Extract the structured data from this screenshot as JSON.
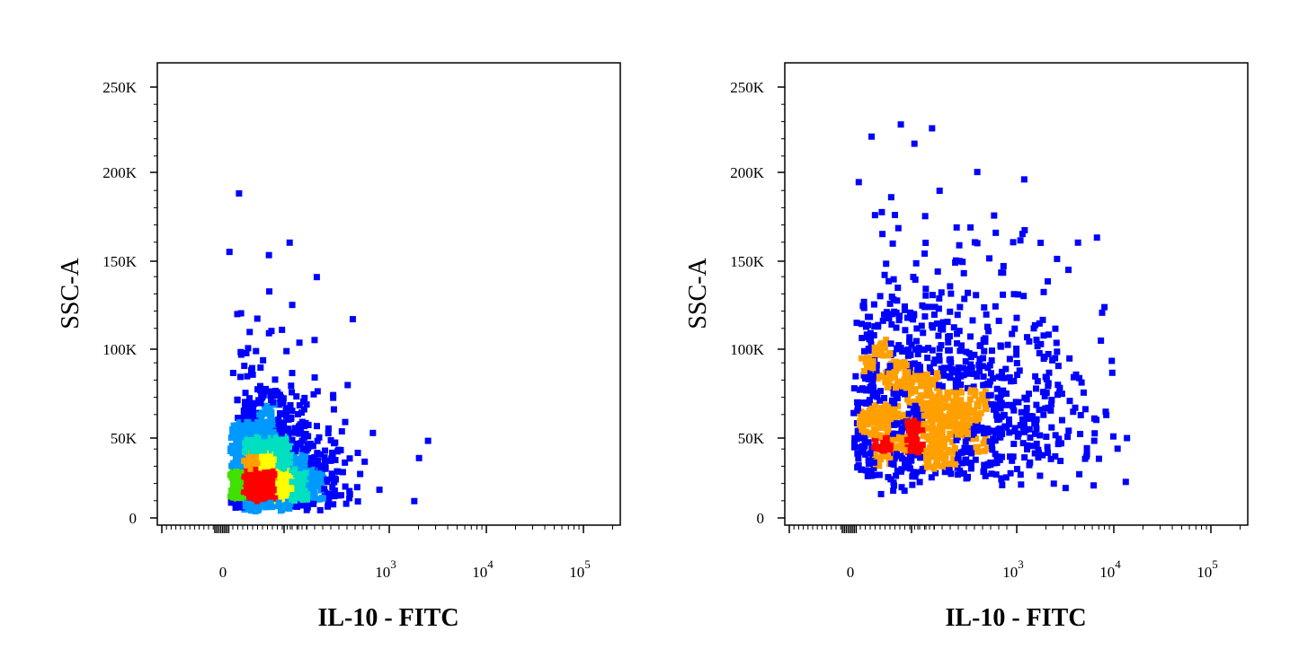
{
  "chart_data": [
    {
      "type": "scatter",
      "plot_style": "flow-cytometry pseudocolor density dot plot",
      "xlabel": "IL-10 - FITC",
      "ylabel": "SSC-A",
      "x_scale": "biexponential",
      "x_ticks": [
        "0",
        "10^3",
        "10^4",
        "10^5"
      ],
      "y_ticks": [
        "0",
        "50K",
        "100K",
        "150K",
        "200K",
        "250K"
      ],
      "ylim": [
        0,
        262144
      ],
      "grid": false,
      "density_colors": [
        "#0000ff",
        "#0099ff",
        "#00e0c0",
        "#40e000",
        "#ffff00",
        "#ffa000",
        "#ff0000"
      ],
      "population": {
        "x_center": 80,
        "x_spread": 0.28,
        "y_center": 24000,
        "y_spread": 0.55,
        "count": 2600,
        "seed": 11
      },
      "outliers": [
        {
          "x": 360,
          "y": 44000
        },
        {
          "x": 560,
          "y": 38000
        },
        {
          "x": 1700,
          "y": 35000
        },
        {
          "x": 2000,
          "y": 45000
        },
        {
          "x": 150,
          "y": 160000
        },
        {
          "x": 260,
          "y": 140000
        }
      ]
    },
    {
      "type": "scatter",
      "plot_style": "flow-cytometry pseudocolor density dot plot",
      "xlabel": "IL-10 - FITC",
      "ylabel": "SSC-A",
      "x_scale": "biexponential",
      "x_ticks": [
        "0",
        "10^3",
        "10^4",
        "10^5"
      ],
      "y_ticks": [
        "0",
        "50K",
        "100K",
        "150K",
        "200K",
        "250K"
      ],
      "ylim": [
        0,
        262144
      ],
      "grid": false,
      "density_colors": [
        "#0000ff",
        "#ffa000",
        "#ff0000"
      ],
      "population": {
        "x_center": 200,
        "x_spread": 0.55,
        "y_center": 62000,
        "y_spread": 0.45,
        "count": 1300,
        "seed": 29
      },
      "outliers": [
        {
          "x": 5000,
          "y": 60000
        },
        {
          "x": 3500,
          "y": 36000
        },
        {
          "x": 3000,
          "y": 160000
        },
        {
          "x": 1100,
          "y": 165000
        },
        {
          "x": 60,
          "y": 165000
        }
      ]
    }
  ]
}
